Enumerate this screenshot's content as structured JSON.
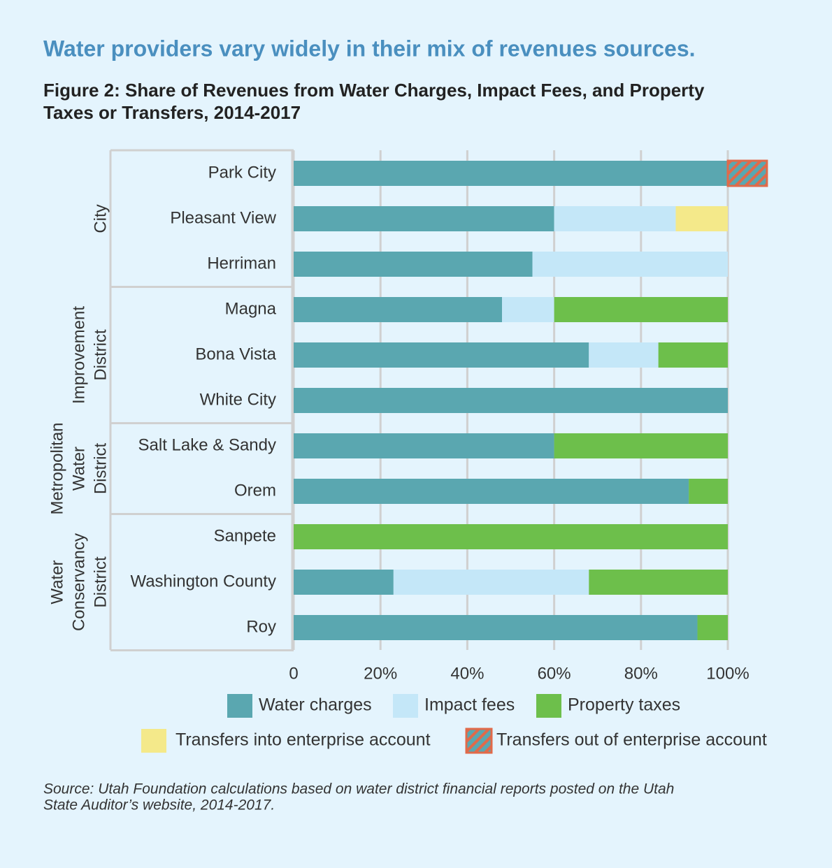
{
  "header": {
    "headline": "Water providers vary widely in their mix of revenues sources."
  },
  "chart_data": {
    "type": "stacked-bar-horizontal",
    "title_lines": [
      "Figure 2: Share of Revenues from Water Charges, Impact Fees, and Property",
      "Taxes or Transfers, 2014-2017"
    ],
    "categories": [
      "Park City",
      "Pleasant View",
      "Herriman",
      "Magna",
      "Bona Vista",
      "White City",
      "Salt Lake & Sandy",
      "Orem",
      "Sanpete",
      "Washington County",
      "Roy"
    ],
    "groups": [
      {
        "lines": [
          "City"
        ],
        "start": 0,
        "end": 2
      },
      {
        "lines": [
          "Improvement",
          "District"
        ],
        "start": 3,
        "end": 5
      },
      {
        "lines": [
          "Metropolitan",
          "Water",
          "District"
        ],
        "start": 6,
        "end": 7
      },
      {
        "lines": [
          "Water",
          "Conservancy",
          "District"
        ],
        "start": 8,
        "end": 10
      }
    ],
    "series": [
      {
        "name": "Water charges",
        "color": "#5aa7b0",
        "values": [
          100,
          60,
          55,
          48,
          68,
          100,
          60,
          91,
          0,
          23,
          93
        ]
      },
      {
        "name": "Impact fees",
        "color": "#c4e7f8",
        "values": [
          0,
          28,
          45,
          12,
          16,
          0,
          0,
          0,
          0,
          45,
          0
        ]
      },
      {
        "name": "Property taxes",
        "color": "#6dbf4b",
        "values": [
          0,
          0,
          0,
          40,
          16,
          0,
          40,
          9,
          100,
          32,
          7
        ]
      },
      {
        "name": "Transfers into enterprise account",
        "color": "#f4e98a",
        "values": [
          0,
          12,
          0,
          0,
          0,
          0,
          0,
          0,
          0,
          0,
          0
        ]
      },
      {
        "name": "Transfers out of enterprise account",
        "color": "#e06a4a",
        "hatch": true,
        "values": [
          9,
          0,
          0,
          0,
          0,
          0,
          0,
          0,
          0,
          0,
          0
        ]
      }
    ],
    "xlim": [
      0,
      110
    ],
    "xticks": [
      0,
      {
        "value": 20,
        "label": "20%"
      },
      {
        "value": 40,
        "label": "40%"
      },
      {
        "value": 60,
        "label": "60%"
      },
      {
        "value": 80,
        "label": "80%"
      },
      {
        "value": 100,
        "label": "100%"
      }
    ],
    "grid": true,
    "source_lines": [
      "Source: Utah Foundation calculations based on water district financial reports posted on the Utah",
      "State Auditor’s website, 2014-2017."
    ]
  }
}
